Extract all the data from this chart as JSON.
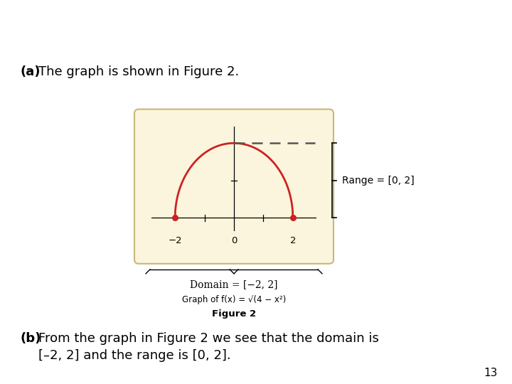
{
  "title_bg_purple": "#8B1A4A",
  "title_bg_blue": "#2E3A8C",
  "slide_bg": "#FFFFFF",
  "graph_bg": "#FAF5DC",
  "graph_edge": "#C8B878",
  "curve_color": "#CC2222",
  "dashed_color": "#555555",
  "dot_color": "#CC2222",
  "text_color": "#000000",
  "range_text": "Range = [0, 2]",
  "domain_text": "Domain = [−2, 2]",
  "page_number": "13",
  "purple_split": 0.215
}
